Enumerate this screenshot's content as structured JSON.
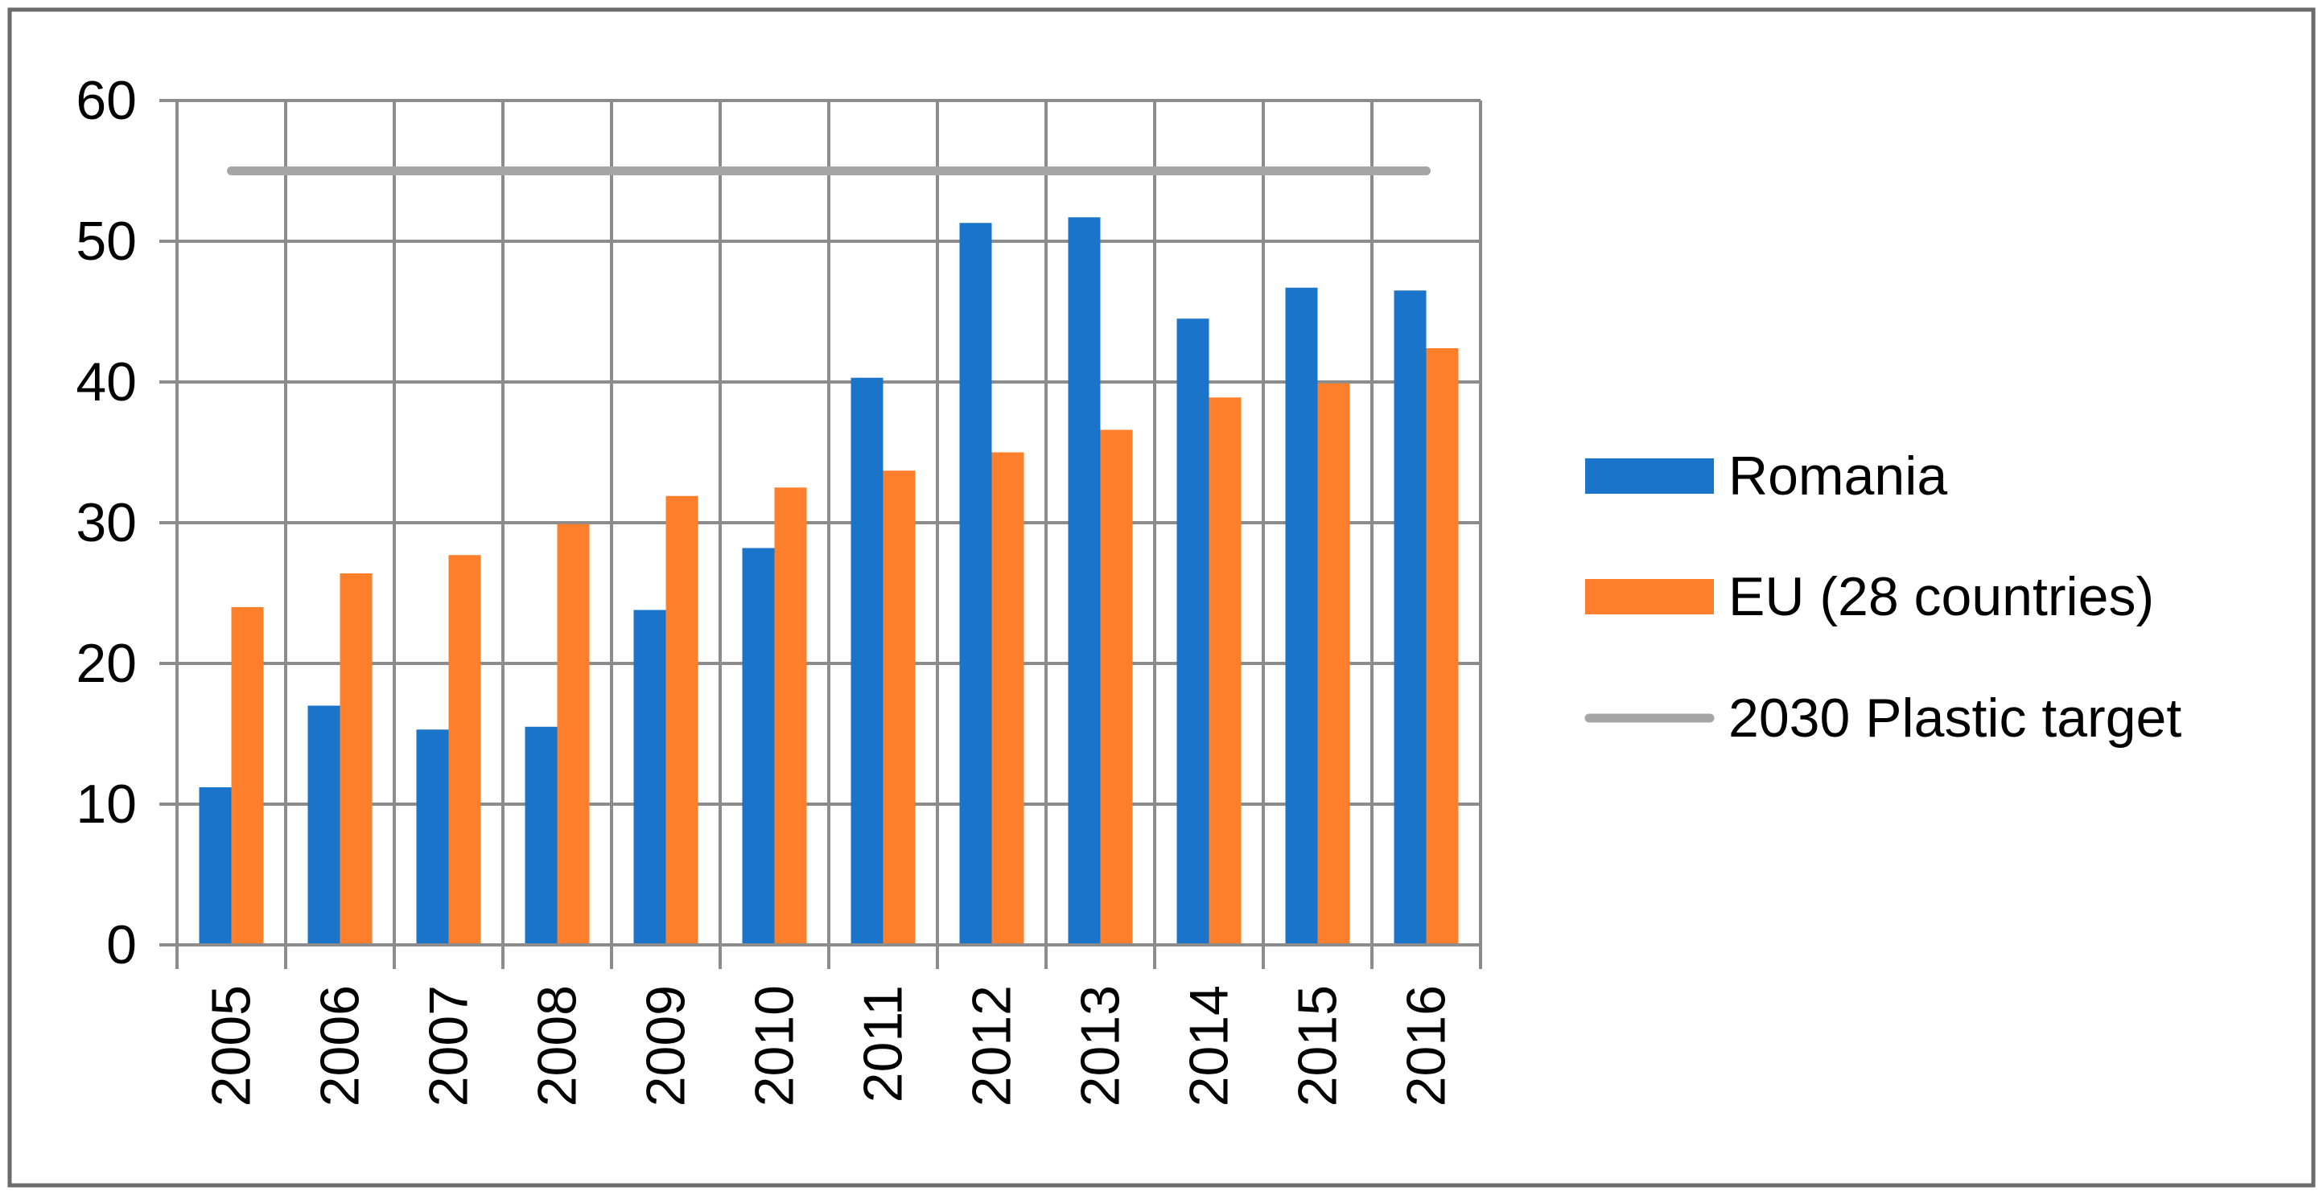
{
  "chart_data": {
    "type": "bar",
    "title": "",
    "xlabel": "",
    "ylabel": "",
    "categories": [
      "2005",
      "2006",
      "2007",
      "2008",
      "2009",
      "2010",
      "2011",
      "2012",
      "2013",
      "2014",
      "2015",
      "2016"
    ],
    "ylim": [
      0,
      60
    ],
    "yticks": [
      "0",
      "10",
      "20",
      "30",
      "40",
      "50",
      "60"
    ],
    "grid": true,
    "legend_position": "right",
    "series": [
      {
        "name": "Romania",
        "kind": "bar",
        "color": "#1a74c9",
        "values": [
          11.2,
          17.0,
          15.3,
          15.5,
          23.8,
          28.2,
          40.3,
          51.3,
          51.7,
          44.5,
          46.7,
          46.5
        ]
      },
      {
        "name": "EU (28 countries)",
        "kind": "bar",
        "color": "#fd7f2c",
        "values": [
          24.0,
          26.4,
          27.7,
          29.9,
          31.9,
          32.5,
          33.7,
          35.0,
          36.6,
          38.9,
          39.9,
          42.4
        ]
      },
      {
        "name": "2030 Plastic target",
        "kind": "line",
        "color": "#a6a6a6",
        "values": [
          55,
          55,
          55,
          55,
          55,
          55,
          55,
          55,
          55,
          55,
          55,
          55
        ]
      }
    ]
  }
}
